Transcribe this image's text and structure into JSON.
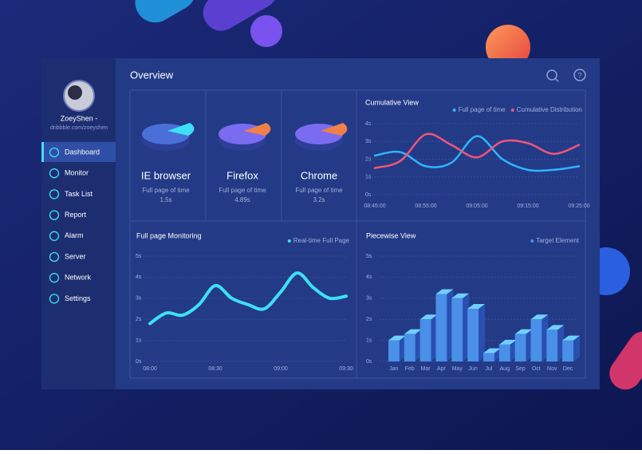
{
  "header": {
    "title": "Overview"
  },
  "profile": {
    "name": "ZoeyShen -",
    "link": "dribbble.com/zoeyshen"
  },
  "nav": [
    "Dashboard",
    "Monitor",
    "Task List",
    "Report",
    "Alarm",
    "Server",
    "Network",
    "Settings"
  ],
  "browsers": [
    {
      "name": "IE browser",
      "label": "Full page of time",
      "value": "1.5s"
    },
    {
      "name": "Firefox",
      "label": "Full page of time",
      "value": "4.89s"
    },
    {
      "name": "Chrome",
      "label": "Full page of time",
      "value": "3.2s"
    }
  ],
  "chart_data": [
    {
      "type": "line",
      "title": "Cumulative View",
      "categories": [
        "08:45:00",
        null,
        "08:55:00",
        null,
        "09:05:00",
        null,
        "09:15:00",
        null,
        "09:25:00"
      ],
      "series": [
        {
          "name": "Full page of time",
          "color": "#2fb4ff",
          "values": [
            2.2,
            2.4,
            1.6,
            1.8,
            3.3,
            2.0,
            1.4,
            1.4,
            1.6
          ]
        },
        {
          "name": "Cumulative Distribution",
          "color": "#f0557a",
          "values": [
            1.5,
            1.9,
            3.4,
            2.8,
            2.1,
            3.0,
            2.9,
            2.3,
            2.8
          ]
        }
      ],
      "ylim": [
        0,
        4
      ],
      "yticks": [
        {
          "value": 0,
          "label": "0s"
        },
        {
          "value": 1,
          "label": "1s"
        },
        {
          "value": 2,
          "label": "2s"
        },
        {
          "value": 3,
          "label": "3s"
        },
        {
          "value": 4,
          "label": "4s"
        }
      ]
    },
    {
      "type": "line",
      "title": "Full page Monitoring",
      "categories": [
        "08:00",
        null,
        null,
        null,
        "08:30",
        null,
        null,
        null,
        "09:00",
        null,
        null,
        null,
        "09:30"
      ],
      "series": [
        {
          "name": "Real-time Full Page",
          "color": "#3ee0f5",
          "values": [
            1.8,
            2.3,
            2.2,
            2.7,
            3.6,
            3.0,
            2.7,
            2.5,
            3.3,
            4.2,
            3.5,
            3.0,
            3.1
          ]
        }
      ],
      "ylim": [
        0,
        5
      ],
      "yticks": [
        {
          "value": 0,
          "label": "0s"
        },
        {
          "value": 1,
          "label": "1s"
        },
        {
          "value": 2,
          "label": "2s"
        },
        {
          "value": 3,
          "label": "3s"
        },
        {
          "value": 4,
          "label": "4s"
        },
        {
          "value": 5,
          "label": "5s"
        }
      ]
    },
    {
      "type": "bar",
      "title": "Piecewise View",
      "categories": [
        "Jan",
        "Feb",
        "Mar",
        "Apr",
        "May",
        "Jun",
        "Jul",
        "Aug",
        "Sep",
        "Oct",
        "Nov",
        "Dec"
      ],
      "series": [
        {
          "name": "Target Element",
          "color": "#4a8fe8",
          "values": [
            1.0,
            1.3,
            2.0,
            3.2,
            3.0,
            2.5,
            0.4,
            0.8,
            1.3,
            2.0,
            1.5,
            1.0
          ]
        }
      ],
      "ylim": [
        0,
        5
      ],
      "yticks": [
        {
          "value": 0,
          "label": "0s"
        },
        {
          "value": 1,
          "label": "1s"
        },
        {
          "value": 2,
          "label": "2s"
        },
        {
          "value": 3,
          "label": "3s"
        },
        {
          "value": 4,
          "label": "4s"
        },
        {
          "value": 5,
          "label": "5s"
        }
      ]
    }
  ]
}
